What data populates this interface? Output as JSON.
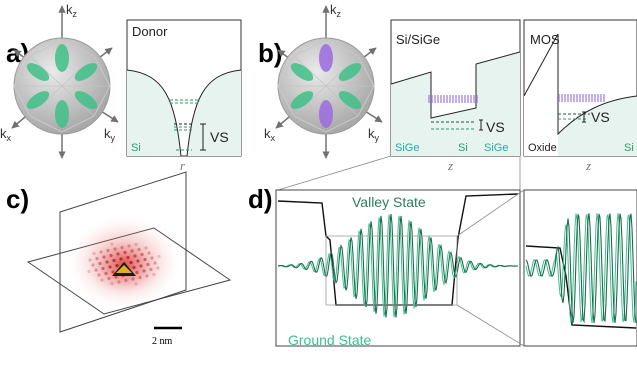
{
  "panels": {
    "a": {
      "letter": "a)",
      "title": "Donor",
      "region": "Si",
      "vs": "VS",
      "xaxis": "r"
    },
    "b": {
      "letter": "b)",
      "sige": {
        "title": "Si/SiGe",
        "left": "SiGe",
        "mid": "Si",
        "right": "SiGe",
        "vs": "VS",
        "xaxis": "z"
      },
      "mos": {
        "title": "MOS",
        "left": "Oxide",
        "right": "Si",
        "vs": "VS",
        "xaxis": "z"
      }
    },
    "c": {
      "letter": "c)",
      "scale": "2 nm"
    },
    "d": {
      "letter": "d)",
      "valley": "Valley State",
      "ground": "Ground State"
    }
  },
  "axes": {
    "kz": "k",
    "kz_sub": "z",
    "kx": "k",
    "kx_sub": "x",
    "ky": "k",
    "ky_sub": "y"
  },
  "colors": {
    "green": "#2e9a6e",
    "dark_green": "#1e5a44",
    "purple": "#8a5cd8",
    "fill": "#e6f3ee",
    "teal_label": "#2aa8a0",
    "red": "#d22a2a"
  }
}
